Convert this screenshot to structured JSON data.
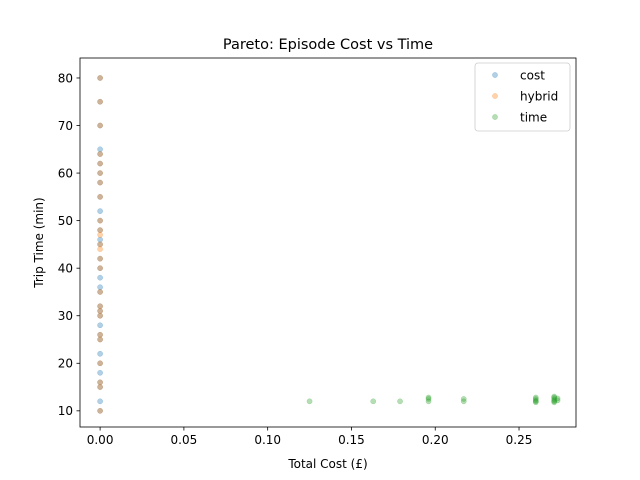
{
  "chart_data": {
    "type": "scatter",
    "title": "Pareto: Episode Cost vs Time",
    "xlabel": "Total Cost (£)",
    "ylabel": "Trip Time (min)",
    "xlim": [
      -0.012,
      0.284
    ],
    "ylim": [
      6.6,
      84.2
    ],
    "xticks": [
      "0.00",
      "0.05",
      "0.10",
      "0.15",
      "0.20",
      "0.25"
    ],
    "xtick_values": [
      0.0,
      0.05,
      0.1,
      0.15,
      0.2,
      0.25
    ],
    "yticks": [
      "10",
      "20",
      "30",
      "40",
      "50",
      "60",
      "70",
      "80"
    ],
    "ytick_values": [
      10,
      20,
      30,
      40,
      50,
      60,
      70,
      80
    ],
    "grid": false,
    "legend_position": "top-right",
    "series": [
      {
        "name": "cost",
        "color": "#1f77b4",
        "points": [
          [
            0,
            80
          ],
          [
            0,
            75
          ],
          [
            0,
            70
          ],
          [
            0,
            65
          ],
          [
            0,
            64
          ],
          [
            0,
            62
          ],
          [
            0,
            60
          ],
          [
            0,
            58
          ],
          [
            0,
            55
          ],
          [
            0,
            52
          ],
          [
            0,
            50
          ],
          [
            0,
            48
          ],
          [
            0,
            46
          ],
          [
            0,
            45
          ],
          [
            0,
            42
          ],
          [
            0,
            40
          ],
          [
            0,
            38
          ],
          [
            0,
            36
          ],
          [
            0,
            35
          ],
          [
            0,
            32
          ],
          [
            0,
            31
          ],
          [
            0,
            30
          ],
          [
            0,
            28
          ],
          [
            0,
            26
          ],
          [
            0,
            25
          ],
          [
            0,
            22
          ],
          [
            0,
            20
          ],
          [
            0,
            18
          ],
          [
            0,
            16
          ],
          [
            0,
            15
          ],
          [
            0,
            12
          ],
          [
            0,
            10
          ]
        ]
      },
      {
        "name": "hybrid",
        "color": "#ff7f0e",
        "points": [
          [
            0,
            80
          ],
          [
            0,
            75
          ],
          [
            0,
            70
          ],
          [
            0,
            64
          ],
          [
            0,
            62
          ],
          [
            0,
            60
          ],
          [
            0,
            58
          ],
          [
            0,
            55
          ],
          [
            0,
            50
          ],
          [
            0,
            48
          ],
          [
            0,
            47
          ],
          [
            0,
            45
          ],
          [
            0,
            44
          ],
          [
            0,
            42
          ],
          [
            0,
            40
          ],
          [
            0,
            35
          ],
          [
            0,
            32
          ],
          [
            0,
            31
          ],
          [
            0,
            30
          ],
          [
            0,
            26
          ],
          [
            0,
            25
          ],
          [
            0,
            20
          ],
          [
            0,
            16
          ],
          [
            0,
            15
          ],
          [
            0,
            10
          ]
        ]
      },
      {
        "name": "time",
        "color": "#2ca02c",
        "points": [
          [
            0.125,
            12
          ],
          [
            0.163,
            12
          ],
          [
            0.179,
            12
          ],
          [
            0.196,
            12
          ],
          [
            0.196,
            12.5
          ],
          [
            0.196,
            12.8
          ],
          [
            0.217,
            12
          ],
          [
            0.217,
            12.5
          ],
          [
            0.26,
            11.8
          ],
          [
            0.26,
            12
          ],
          [
            0.26,
            12.2
          ],
          [
            0.26,
            12.5
          ],
          [
            0.26,
            12.8
          ],
          [
            0.271,
            11.8
          ],
          [
            0.271,
            12
          ],
          [
            0.271,
            12.2
          ],
          [
            0.271,
            12.5
          ],
          [
            0.271,
            12.8
          ],
          [
            0.271,
            13
          ],
          [
            0.273,
            12.2
          ],
          [
            0.273,
            12.6
          ]
        ]
      }
    ]
  }
}
